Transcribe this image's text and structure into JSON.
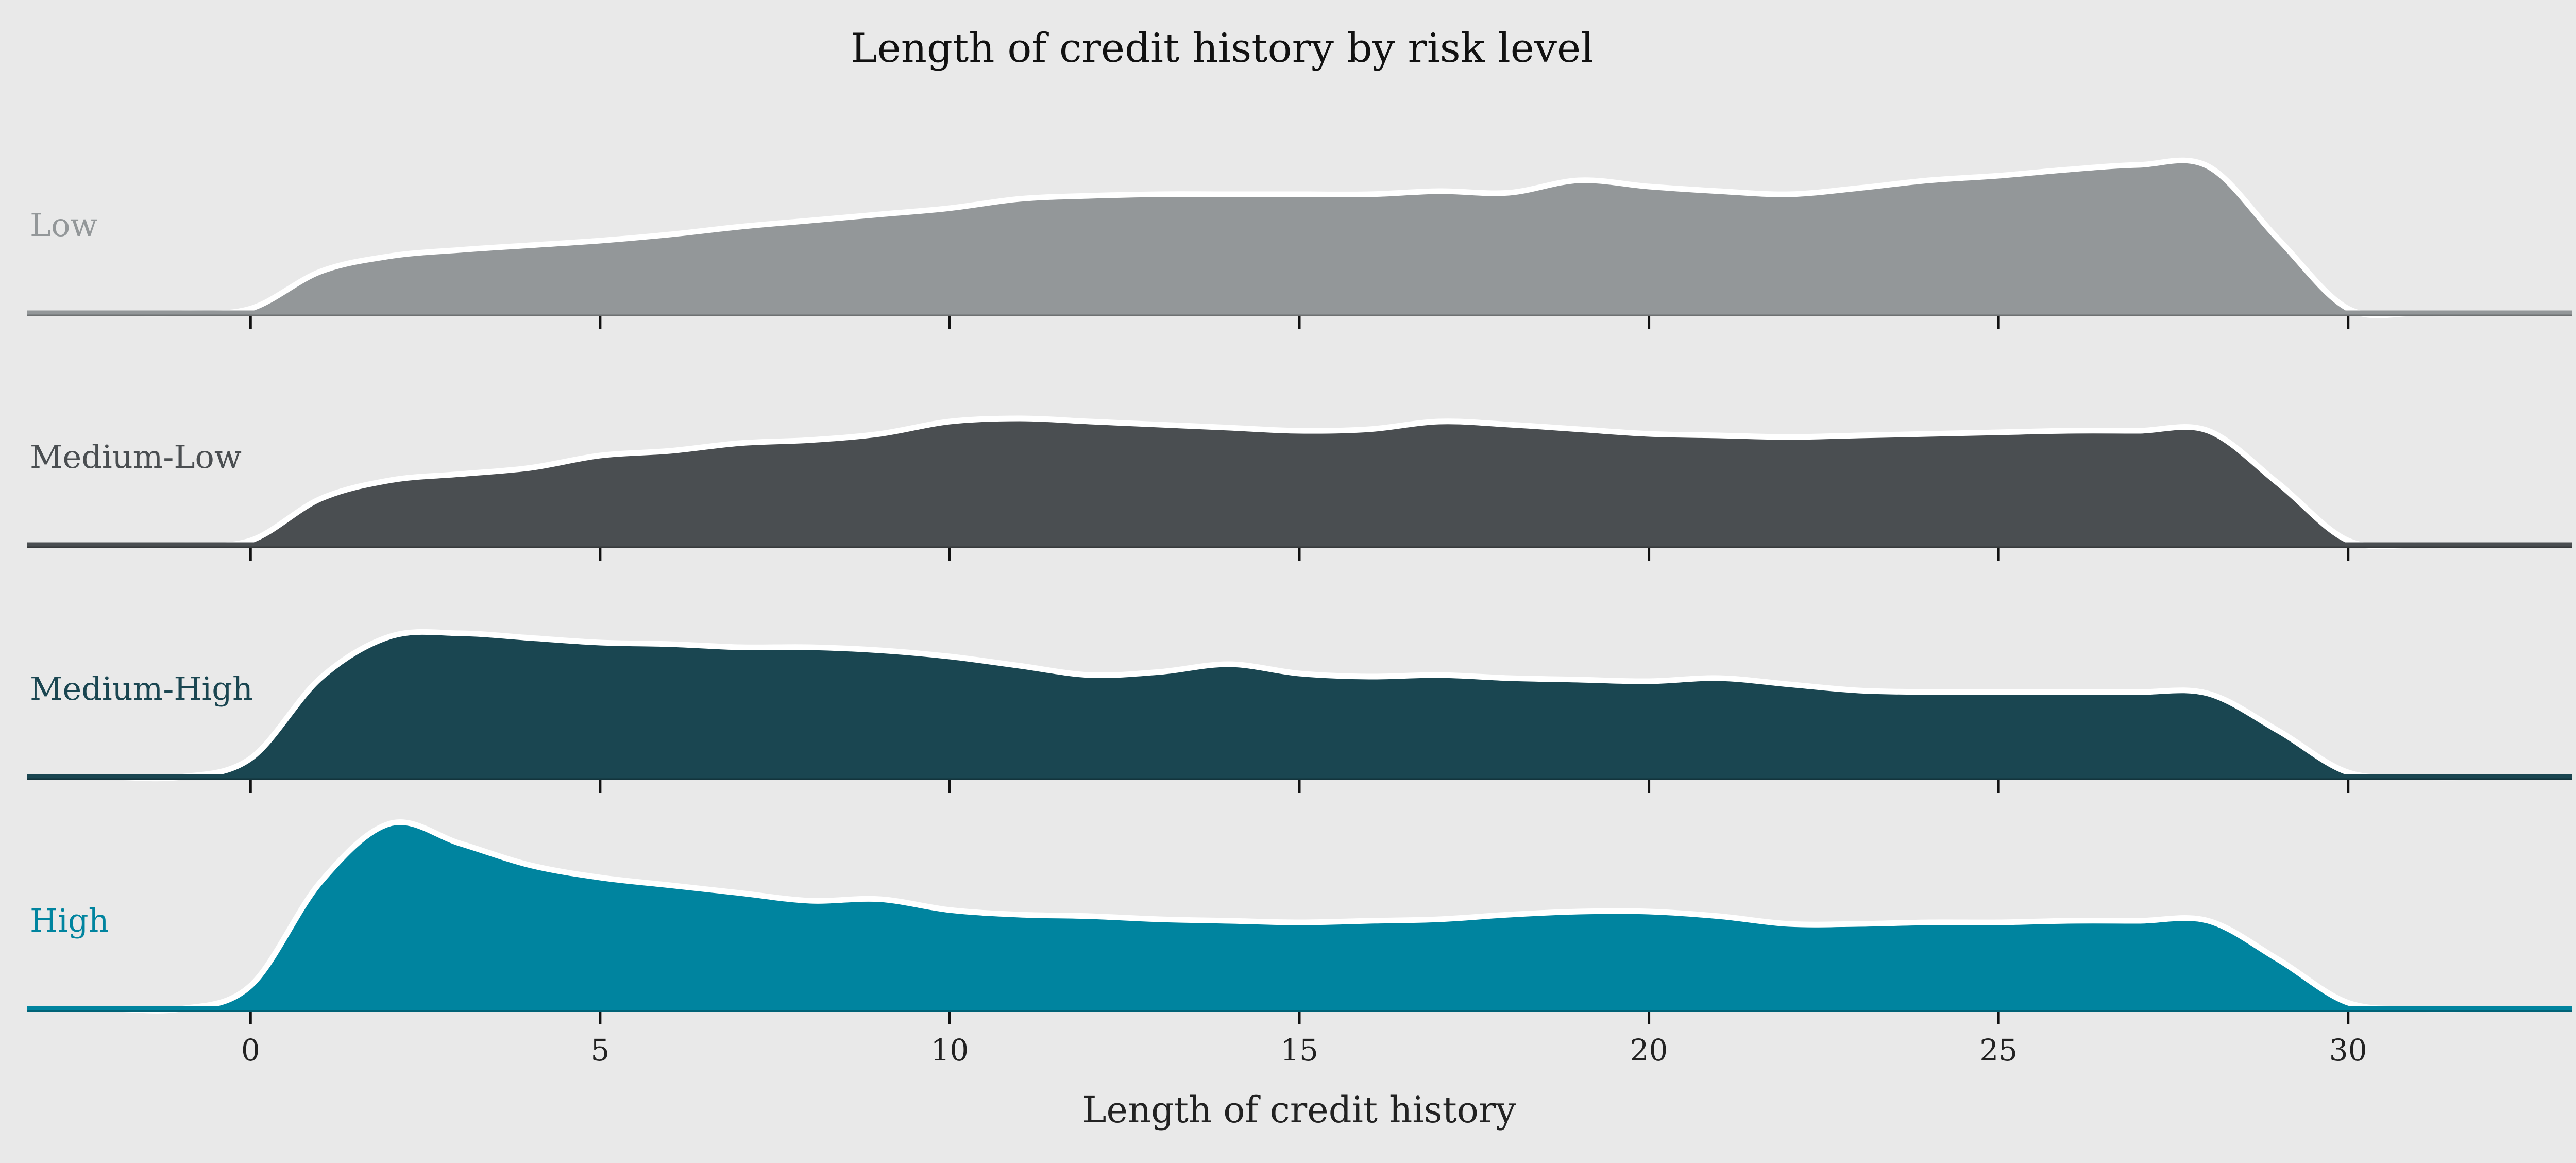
{
  "chart_data": {
    "type": "area",
    "title": "Length of credit history by risk level",
    "xlabel": "Length of credit history",
    "ylabel": "",
    "xlim": [
      -3.2,
      33.2
    ],
    "xticks": [
      0,
      5,
      10,
      15,
      20,
      25,
      30
    ],
    "grid": false,
    "legend": "none",
    "x": [
      -3,
      -2,
      -1,
      0,
      1,
      2,
      3,
      4,
      5,
      6,
      7,
      8,
      9,
      10,
      11,
      12,
      13,
      14,
      15,
      16,
      17,
      18,
      19,
      20,
      21,
      22,
      23,
      24,
      25,
      26,
      27,
      28,
      29,
      30,
      31,
      32,
      33
    ],
    "series": [
      {
        "name": "Low",
        "color": "#939799",
        "values": [
          0.0,
          0.0,
          0.0,
          0.03,
          0.27,
          0.37,
          0.41,
          0.44,
          0.47,
          0.51,
          0.56,
          0.6,
          0.64,
          0.68,
          0.74,
          0.76,
          0.77,
          0.77,
          0.77,
          0.77,
          0.79,
          0.78,
          0.86,
          0.82,
          0.79,
          0.77,
          0.81,
          0.86,
          0.89,
          0.93,
          0.96,
          0.95,
          0.48,
          0.03,
          0.0,
          0.0,
          0.0
        ]
      },
      {
        "name": "Medium-Low",
        "color": "#4a4e51",
        "values": [
          0.0,
          0.0,
          0.0,
          0.03,
          0.3,
          0.42,
          0.46,
          0.5,
          0.58,
          0.61,
          0.66,
          0.68,
          0.72,
          0.8,
          0.82,
          0.8,
          0.78,
          0.76,
          0.74,
          0.75,
          0.8,
          0.78,
          0.75,
          0.72,
          0.71,
          0.7,
          0.71,
          0.72,
          0.73,
          0.74,
          0.74,
          0.74,
          0.4,
          0.03,
          0.0,
          0.0,
          0.0
        ]
      },
      {
        "name": "Medium-High",
        "color": "#1a4651",
        "values": [
          0.0,
          0.0,
          0.0,
          0.12,
          0.64,
          0.91,
          0.93,
          0.9,
          0.87,
          0.86,
          0.84,
          0.84,
          0.82,
          0.78,
          0.72,
          0.66,
          0.68,
          0.73,
          0.67,
          0.65,
          0.66,
          0.64,
          0.63,
          0.62,
          0.64,
          0.6,
          0.56,
          0.55,
          0.55,
          0.55,
          0.55,
          0.54,
          0.3,
          0.03,
          0.0,
          0.0,
          0.0
        ]
      },
      {
        "name": "High",
        "color": "#00849f",
        "values": [
          0.0,
          0.0,
          0.0,
          0.15,
          0.82,
          1.2,
          1.07,
          0.93,
          0.85,
          0.8,
          0.75,
          0.7,
          0.71,
          0.64,
          0.61,
          0.6,
          0.58,
          0.57,
          0.56,
          0.57,
          0.58,
          0.61,
          0.63,
          0.63,
          0.6,
          0.55,
          0.55,
          0.56,
          0.56,
          0.57,
          0.57,
          0.57,
          0.32,
          0.04,
          0.0,
          0.0,
          0.0
        ]
      }
    ]
  }
}
